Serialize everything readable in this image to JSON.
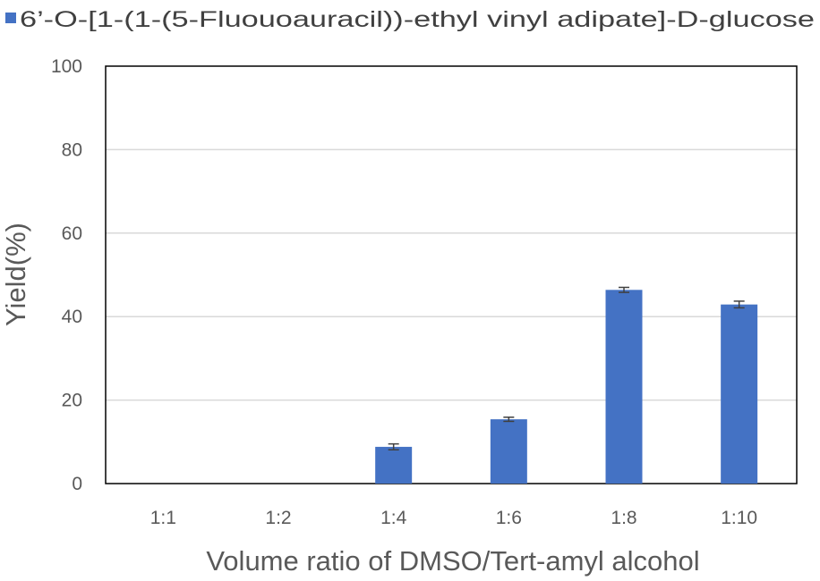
{
  "chart_data": {
    "type": "bar",
    "categories": [
      "1:1",
      "1:2",
      "1:4",
      "1:6",
      "1:8",
      "1:10"
    ],
    "series": [
      {
        "name": "6’-O-[1-(1-(5-Fluouoauracil))-ethyl vinyl adipate]-D-glucose",
        "values": [
          0,
          0,
          8.8,
          15.4,
          46.4,
          42.9
        ],
        "errors": [
          0,
          0,
          0.7,
          0.5,
          0.6,
          0.8
        ],
        "color": "#4472C4"
      }
    ],
    "title": "",
    "xlabel": "Volume ratio of DMSO/Tert-amyl alcohol",
    "ylabel": "Yield(%)",
    "ylim": [
      0,
      100
    ],
    "yticks": [
      "0",
      "20",
      "40",
      "60",
      "80",
      "100"
    ],
    "grid": true,
    "legend_position": "top"
  }
}
